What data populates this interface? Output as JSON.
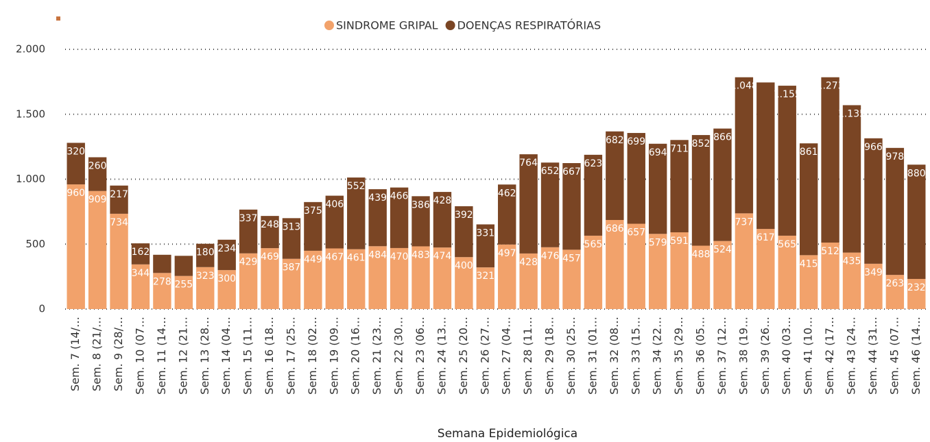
{
  "chart_data": {
    "type": "stacked-bar",
    "x_label": "Semana Epidemiológica",
    "categories": [
      "Sem. 7 (14/…",
      "Sem. 8 (21/…",
      "Sem. 9 (28/…",
      "Sem. 10 (07…",
      "Sem. 11 (14…",
      "Sem. 12 (21…",
      "Sem. 13 (28…",
      "Sem. 14 (04…",
      "Sem. 15 (11…",
      "Sem. 16 (18…",
      "Sem. 17 (25…",
      "Sem. 18 (02…",
      "Sem. 19 (09…",
      "Sem. 20 (16…",
      "Sem. 21 (23…",
      "Sem. 22 (30…",
      "Sem. 23 (06…",
      "Sem. 24 (13…",
      "Sem. 25 (20…",
      "Sem. 26 (27…",
      "Sem. 27 (04…",
      "Sem. 28 (11…",
      "Sem. 29 (18…",
      "Sem. 30 (25…",
      "Sem. 31 (01…",
      "Sem. 32 (08…",
      "Sem. 33 (15…",
      "Sem. 34 (22…",
      "Sem. 35 (29…",
      "Sem. 36 (05…",
      "Sem. 37 (12…",
      "Sem. 38 (19…",
      "Sem. 39 (26…",
      "Sem. 40 (03…",
      "Sem. 41 (10…",
      "Sem. 42 (17…",
      "Sem. 43 (24…",
      "Sem. 44 (31…",
      "Sem. 45 (07…",
      "Sem. 46 (14…"
    ],
    "series": [
      {
        "name": "SINDROME GRIPAL",
        "color": "#f2a26b",
        "values": [
          960,
          909,
          734,
          344,
          278,
          255,
          323,
          300,
          429,
          469,
          387,
          449,
          467,
          461,
          484,
          470,
          483,
          474,
          400,
          321,
          497,
          428,
          476,
          457,
          565,
          686,
          657,
          579,
          591,
          488,
          524,
          737,
          617,
          565,
          415,
          512,
          435,
          349,
          263,
          232
        ]
      },
      {
        "name": "DOENÇAS RESPIRATÓRIAS",
        "color": "#7a4524",
        "values": [
          320,
          260,
          217,
          162,
          140,
          155,
          180,
          234,
          337,
          248,
          313,
          375,
          406,
          552,
          439,
          466,
          386,
          428,
          392,
          331,
          462,
          764,
          652,
          667,
          623,
          682,
          699,
          694,
          711,
          852,
          866,
          1048,
          1128,
          1155,
          861,
          1273,
          1135,
          966,
          978,
          880
        ],
        "value_labels": [
          "320",
          "260",
          "217",
          "162",
          null,
          null,
          "180",
          "234",
          "337",
          "248",
          "313",
          "375",
          "406",
          "552",
          "439",
          "466",
          "386",
          "428",
          "392",
          "331",
          "462",
          "764",
          "652",
          "667",
          "623",
          "682",
          "699",
          "694",
          "711",
          "852",
          "866",
          "1.048",
          null,
          "1.155",
          "861",
          "1.273",
          "1.135",
          "966",
          "978",
          "880"
        ]
      }
    ],
    "ylim": [
      0,
      2000
    ],
    "yticks": [
      0,
      500,
      {
        "value": 1000,
        "label": "1.000"
      },
      {
        "value": 1500,
        "label": "1.500"
      },
      {
        "value": 2000,
        "label": "2.000"
      }
    ],
    "grid": true,
    "legend": "top"
  }
}
